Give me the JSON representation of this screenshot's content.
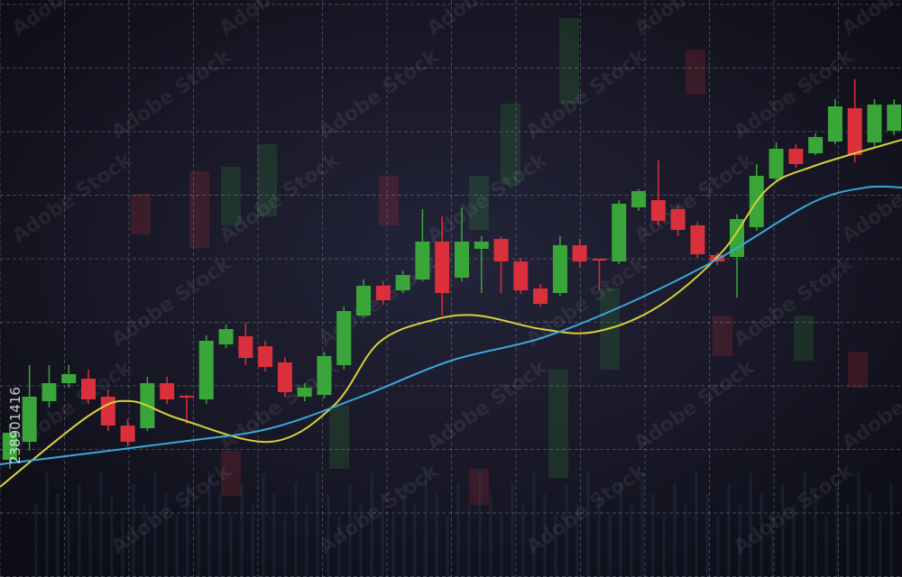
{
  "chart_data": {
    "type": "candlestick",
    "x": [
      1,
      2,
      3,
      4,
      5,
      6,
      7,
      8,
      9,
      10,
      11,
      12,
      13,
      14,
      15,
      16,
      17,
      18,
      19,
      20,
      21,
      22,
      23,
      24,
      25,
      26,
      27,
      28,
      29,
      30,
      31,
      32,
      33,
      34,
      35,
      36,
      37,
      38,
      39,
      40,
      41,
      42,
      43,
      44,
      45,
      46
    ],
    "open": [
      130,
      150,
      195,
      215,
      220,
      200,
      168,
      165,
      215,
      201,
      197,
      258,
      267,
      256,
      238,
      200,
      202,
      235,
      290,
      323,
      318,
      330,
      372,
      332,
      364,
      375,
      350,
      320,
      315,
      368,
      353,
      350,
      410,
      418,
      408,
      390,
      357,
      355,
      388,
      442,
      475,
      470,
      483,
      520,
      482,
      495
    ],
    "high": [
      170,
      235,
      235,
      235,
      230,
      208,
      175,
      222,
      222,
      202,
      268,
      280,
      282,
      262,
      244,
      215,
      250,
      300,
      330,
      328,
      340,
      408,
      400,
      410,
      378,
      378,
      354,
      325,
      378,
      375,
      353,
      418,
      430,
      462,
      412,
      394,
      360,
      402,
      458,
      482,
      480,
      492,
      530,
      552,
      530,
      530
    ],
    "low": [
      120,
      140,
      188,
      210,
      192,
      162,
      145,
      162,
      192,
      170,
      192,
      254,
      235,
      228,
      200,
      195,
      198,
      230,
      288,
      302,
      315,
      328,
      290,
      328,
      315,
      315,
      314,
      300,
      312,
      344,
      318,
      347,
      406,
      390,
      378,
      354,
      346,
      310,
      384,
      440,
      454,
      468,
      480,
      460,
      478,
      490
    ],
    "close": [
      160,
      200,
      215,
      225,
      197,
      168,
      150,
      215,
      197,
      199,
      262,
      275,
      243,
      233,
      205,
      210,
      245,
      295,
      323,
      307,
      335,
      372,
      315,
      372,
      372,
      350,
      318,
      303,
      368,
      350,
      351,
      414,
      428,
      395,
      385,
      358,
      350,
      397,
      445,
      475,
      458,
      488,
      522,
      468,
      524,
      524
    ],
    "up_color": "#3aa63a",
    "down_color": "#d9303b",
    "lines": [
      {
        "color": "#d9cf3a",
        "x": [
          0.5,
          5.09,
          7.16,
          9.68,
          14.27,
          17.48,
          19.78,
          22.53,
          24.83,
          28.04,
          30.79,
          34.0,
          37.22,
          39.52,
          41.81,
          46.4
        ],
        "values": [
          100,
          180,
          195,
          175,
          150,
          190,
          260,
          285,
          290,
          275,
          272,
          300,
          360,
          430,
          455,
          485
        ]
      },
      {
        "color": "#3aa8d9",
        "x": [
          0.5,
          9.68,
          14.27,
          18.86,
          23.45,
          28.04,
          32.63,
          37.22,
          41.81,
          44.56,
          46.4
        ],
        "values": [
          125,
          150,
          165,
          200,
          240,
          265,
          305,
          355,
          415,
          432,
          432
        ]
      }
    ],
    "xlim": [
      0.5,
      46.4
    ],
    "ylim": [
      0,
      640
    ],
    "grid": true
  },
  "watermark": {
    "text": "Adobe Stock",
    "id": "238901416"
  }
}
